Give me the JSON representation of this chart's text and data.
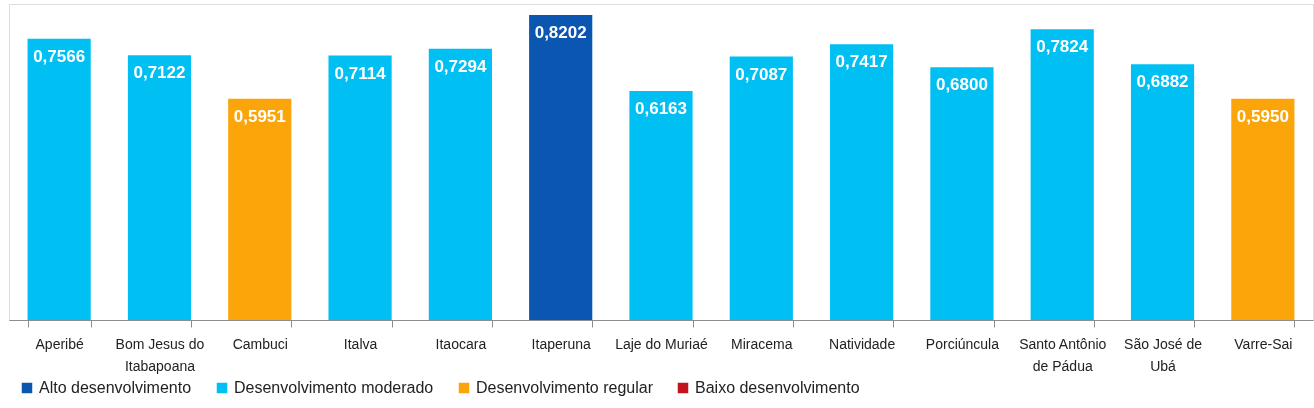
{
  "chart_data": {
    "type": "bar",
    "stacked": true,
    "tick_labels": "x",
    "legend": "bottom left",
    "ylim": [
      0,
      0.85
    ],
    "categories": [
      "Aperibé",
      "Bom Jesus do Itabapoana",
      "Cambuci",
      "Italva",
      "Itaocara",
      "Itaperuna",
      "Laje do Muriaé",
      "Miracema",
      "Natividade",
      "Porciúncula",
      "Santo Antônio de Pádua",
      "São José de Ubá",
      "Varre-Sai"
    ],
    "series": [
      {
        "name": "Alto desenvolvimento",
        "color": "#0a56b0",
        "values": [
          null,
          null,
          null,
          null,
          null,
          0.8202,
          null,
          null,
          null,
          null,
          null,
          null,
          null
        ],
        "value_labels": [
          null,
          null,
          null,
          null,
          null,
          "0,8202",
          null,
          null,
          null,
          null,
          null,
          null,
          null
        ]
      },
      {
        "name": "Desenvolvimento moderado",
        "color": "#00bff3",
        "values": [
          0.7566,
          0.7122,
          null,
          0.7114,
          0.7294,
          null,
          0.6163,
          0.7087,
          0.7417,
          0.68,
          0.7824,
          0.6882,
          null
        ],
        "value_labels": [
          "0,7566",
          "0,7122",
          null,
          "0,7114",
          "0,7294",
          null,
          "0,6163",
          "0,7087",
          "0,7417",
          "0,6800",
          "0,7824",
          "0,6882",
          null
        ]
      },
      {
        "name": "Desenvolvimento regular",
        "color": "#fca50a",
        "values": [
          null,
          null,
          0.5951,
          null,
          null,
          null,
          null,
          null,
          null,
          null,
          null,
          null,
          0.595
        ],
        "value_labels": [
          null,
          null,
          "0,5951",
          null,
          null,
          null,
          null,
          null,
          null,
          null,
          null,
          null,
          "0,5950"
        ]
      },
      {
        "name": "Baixo desenvolvimento",
        "color": "#c0141e",
        "values": [
          null,
          null,
          null,
          null,
          null,
          null,
          null,
          null,
          null,
          null,
          null,
          null,
          null
        ]
      }
    ]
  }
}
